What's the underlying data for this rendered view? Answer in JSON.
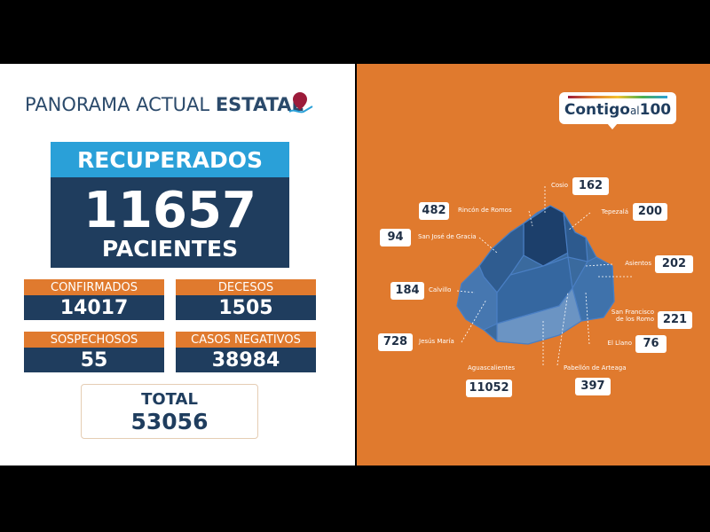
{
  "header": {
    "title": "PANORAMA ACTUAL",
    "title_bold": "ESTATAL"
  },
  "recovered": {
    "label": "RECUPERADOS",
    "value": 11657,
    "unit": "PACIENTES"
  },
  "stats": [
    {
      "label": "CONFIRMADOS",
      "value": 14017
    },
    {
      "label": "DECESOS",
      "value": 1505
    },
    {
      "label": "SOSPECHOSOS",
      "value": 55
    },
    {
      "label": "CASOS NEGATIVOS",
      "value": 38984
    }
  ],
  "total": {
    "label": "TOTAL",
    "value": 53056
  },
  "logo": {
    "brand": "Contigo",
    "small": "al",
    "number": "100"
  },
  "municipalities": [
    {
      "name": "Cosio",
      "value": 162
    },
    {
      "name": "Rincón de Romos",
      "value": 482
    },
    {
      "name": "Tepezalá",
      "value": 200
    },
    {
      "name": "San José de Gracia",
      "value": 94
    },
    {
      "name": "Asientos",
      "value": 202
    },
    {
      "name": "Calvillo",
      "value": 184
    },
    {
      "name": "San Francisco de los Romo",
      "value": 221
    },
    {
      "name": "Jesús María",
      "value": 728
    },
    {
      "name": "El Llano",
      "value": 76
    },
    {
      "name": "Aguascalientes",
      "value": 11052
    },
    {
      "name": "Pabellón de Arteaga",
      "value": 397
    }
  ]
}
